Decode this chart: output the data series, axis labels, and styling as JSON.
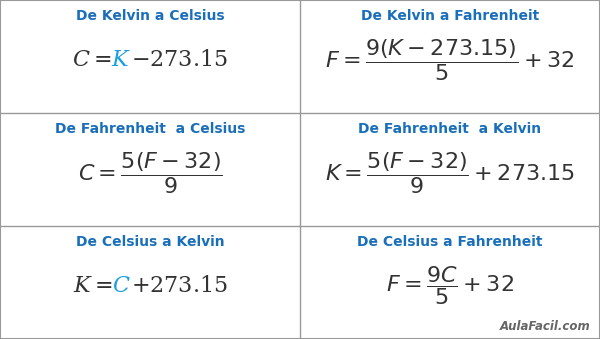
{
  "background_color": "#ffffff",
  "border_color": "#999999",
  "title_color": "#1a6fba",
  "formula_color": "#333333",
  "highlight_color": "#1a9fe0",
  "watermark": "AulaFacil.com",
  "watermark_color": "#666666",
  "title_fontsize": 10,
  "formula_fontsize": 16,
  "figwidth": 6.0,
  "figheight": 3.39,
  "dpi": 100,
  "cells": [
    {
      "row": 0,
      "col": 0,
      "title": "De Kelvin a Celsius",
      "segments": [
        {
          "text": "$\\mathit{C} = $",
          "color": "#333333"
        },
        {
          "text": "$\\mathit{K}$",
          "color": "#1a9fe0"
        },
        {
          "text": "$ - 273.15$",
          "color": "#333333"
        }
      ]
    },
    {
      "row": 0,
      "col": 1,
      "title": "De Kelvin a Fahrenheit",
      "segments": [
        {
          "text": "$\\mathit{F} = \\dfrac{9($",
          "color": "#333333"
        },
        {
          "text": "$\\mathit{K}$",
          "color": "#1a9fe0"
        },
        {
          "text": "$ - 273.15)}{5} + 32$",
          "color": "#333333"
        }
      ]
    },
    {
      "row": 1,
      "col": 0,
      "title": "De Fahrenheit  a Celsius",
      "segments": [
        {
          "text": "$\\mathit{C} = \\dfrac{5($",
          "color": "#333333"
        },
        {
          "text": "$\\mathit{F}$",
          "color": "#1a9fe0"
        },
        {
          "text": "$ - 32)}{9}$",
          "color": "#333333"
        }
      ]
    },
    {
      "row": 1,
      "col": 1,
      "title": "De Fahrenheit  a Kelvin",
      "segments": [
        {
          "text": "$\\mathit{K} = \\dfrac{5($",
          "color": "#333333"
        },
        {
          "text": "$\\mathit{F}$",
          "color": "#1a9fe0"
        },
        {
          "text": "$ - 32)}{9} + 273.15$",
          "color": "#333333"
        }
      ]
    },
    {
      "row": 2,
      "col": 0,
      "title": "De Celsius a Kelvin",
      "segments": [
        {
          "text": "$\\mathit{K} = $",
          "color": "#333333"
        },
        {
          "text": "$\\mathit{C}$",
          "color": "#1a9fe0"
        },
        {
          "text": "$ + 273.15$",
          "color": "#333333"
        }
      ]
    },
    {
      "row": 2,
      "col": 1,
      "title": "De Celsius a Fahrenheit",
      "segments": [
        {
          "text": "$\\mathit{F} = \\dfrac{9$",
          "color": "#333333"
        },
        {
          "text": "$\\mathit{C}$",
          "color": "#1a9fe0"
        },
        {
          "text": "$}{5} + 32$",
          "color": "#333333"
        }
      ]
    }
  ]
}
